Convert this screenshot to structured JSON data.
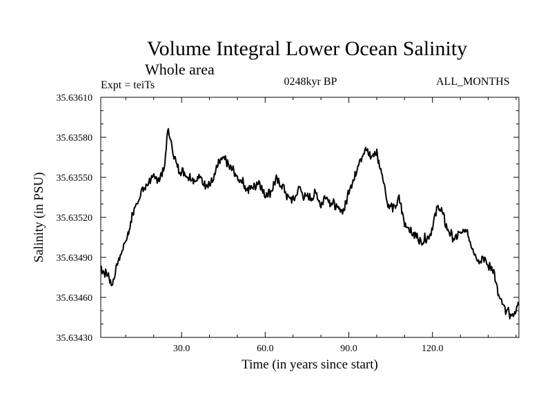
{
  "chart_data": {
    "type": "line",
    "title": "Volume Integral Lower Ocean Salinity",
    "subtitle": "Whole area",
    "experiment": "Expt = teiTs",
    "period": "0248kyr BP",
    "months": "ALL_MONTHS",
    "xlabel": "Time (in years since start)",
    "ylabel": "Salinity (in PSU)",
    "xlim": [
      1,
      151
    ],
    "ylim": [
      35.6343,
      35.6361
    ],
    "x_ticks": [
      30,
      60,
      90,
      120
    ],
    "x_tick_labels": [
      "30.0",
      "60.0",
      "90.0",
      "120.0"
    ],
    "y_ticks": [
      35.6343,
      35.6346,
      35.6349,
      35.6352,
      35.6355,
      35.6358,
      35.6361
    ],
    "y_tick_labels": [
      "35.63430",
      "35.63460",
      "35.63490",
      "35.63520",
      "35.63550",
      "35.63580",
      "35.63610"
    ],
    "series": [
      {
        "name": "Salinity",
        "x": [
          1,
          3,
          5,
          6,
          8,
          10,
          12,
          14,
          16,
          18,
          20,
          22,
          24,
          25,
          26,
          27,
          28,
          30,
          32,
          34,
          36,
          38,
          40,
          42,
          44,
          46,
          48,
          50,
          52,
          54,
          56,
          58,
          60,
          62,
          64,
          66,
          68,
          70,
          72,
          74,
          76,
          78,
          80,
          82,
          84,
          86,
          88,
          90,
          92,
          94,
          96,
          98,
          100,
          102,
          104,
          106,
          108,
          110,
          112,
          114,
          116,
          118,
          120,
          122,
          124,
          126,
          128,
          130,
          132,
          134,
          136,
          138,
          140,
          142,
          144,
          146,
          148,
          150,
          151
        ],
        "values": [
          35.63482,
          35.63478,
          35.6347,
          35.63477,
          35.63492,
          35.63502,
          35.63518,
          35.63532,
          35.6354,
          35.63546,
          35.6355,
          35.63548,
          35.6356,
          35.63584,
          35.6358,
          35.63568,
          35.6356,
          35.63554,
          35.63552,
          35.63548,
          35.6355,
          35.63546,
          35.63544,
          35.63552,
          35.63564,
          35.63562,
          35.63556,
          35.6355,
          35.63546,
          35.6354,
          35.63544,
          35.63546,
          35.63536,
          35.6354,
          35.63548,
          35.63544,
          35.63536,
          35.63532,
          35.63542,
          35.63536,
          35.63534,
          35.63538,
          35.6353,
          35.63536,
          35.6353,
          35.63527,
          35.63524,
          35.6354,
          35.6355,
          35.63564,
          35.6357,
          35.63566,
          35.63568,
          35.63552,
          35.6353,
          35.63526,
          35.63534,
          35.63516,
          35.6351,
          35.63506,
          35.63502,
          35.63504,
          35.63512,
          35.6353,
          35.6352,
          35.63508,
          35.63504,
          35.63508,
          35.6351,
          35.635,
          35.63488,
          35.6349,
          35.63484,
          35.6348,
          35.63458,
          35.63452,
          35.63446,
          35.6345,
          35.63454
        ]
      }
    ]
  }
}
